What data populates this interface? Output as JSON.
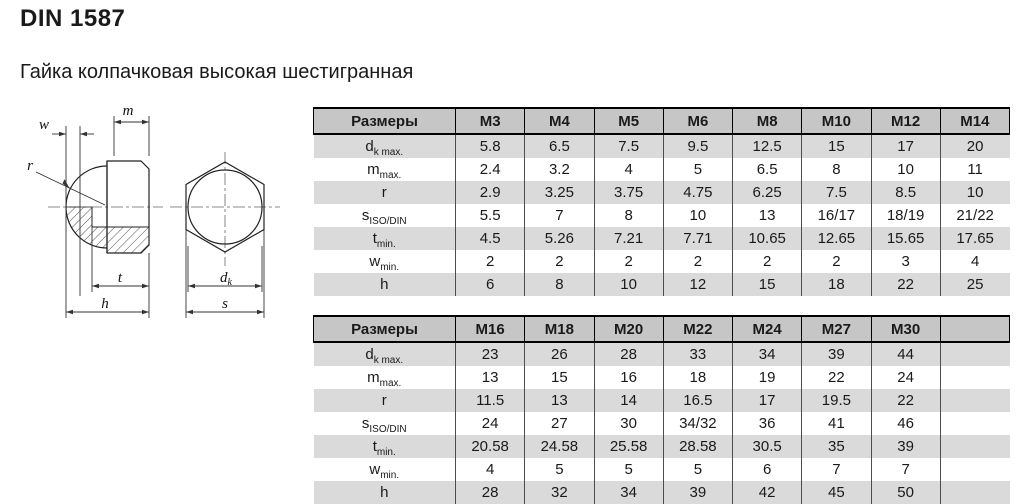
{
  "page": {
    "title": "DIN 1587",
    "subtitle": "Гайка колпачковая высокая шестигранная"
  },
  "drawing": {
    "labels": {
      "w": "w",
      "m": "m",
      "r": "r",
      "t": "t",
      "h": "h",
      "d_main": "d",
      "d_sub": "k",
      "s": "s"
    }
  },
  "tables": [
    {
      "header_label": "Размеры",
      "columns": [
        "M3",
        "M4",
        "M5",
        "M6",
        "M8",
        "M10",
        "M12",
        "M14"
      ],
      "rows": [
        {
          "param": "d",
          "sub": "k max.",
          "values": [
            "5.8",
            "6.5",
            "7.5",
            "9.5",
            "12.5",
            "15",
            "17",
            "20"
          ]
        },
        {
          "param": "m",
          "sub": "max.",
          "values": [
            "2.4",
            "3.2",
            "4",
            "5",
            "6.5",
            "8",
            "10",
            "11"
          ]
        },
        {
          "param": "r",
          "sub": "",
          "values": [
            "2.9",
            "3.25",
            "3.75",
            "4.75",
            "6.25",
            "7.5",
            "8.5",
            "10"
          ]
        },
        {
          "param": "s",
          "sub": "ISO/DIN",
          "values": [
            "5.5",
            "7",
            "8",
            "10",
            "13",
            "16/17",
            "18/19",
            "21/22"
          ]
        },
        {
          "param": "t",
          "sub": "min.",
          "values": [
            "4.5",
            "5.26",
            "7.21",
            "7.71",
            "10.65",
            "12.65",
            "15.65",
            "17.65"
          ]
        },
        {
          "param": "w",
          "sub": "min.",
          "values": [
            "2",
            "2",
            "2",
            "2",
            "2",
            "2",
            "3",
            "4"
          ]
        },
        {
          "param": "h",
          "sub": "",
          "values": [
            "6",
            "8",
            "10",
            "12",
            "15",
            "18",
            "22",
            "25"
          ]
        }
      ]
    },
    {
      "header_label": "Размеры",
      "columns": [
        "M16",
        "M18",
        "M20",
        "M22",
        "M24",
        "M27",
        "M30",
        ""
      ],
      "rows": [
        {
          "param": "d",
          "sub": "k max.",
          "values": [
            "23",
            "26",
            "28",
            "33",
            "34",
            "39",
            "44",
            ""
          ]
        },
        {
          "param": "m",
          "sub": "max.",
          "values": [
            "13",
            "15",
            "16",
            "18",
            "19",
            "22",
            "24",
            ""
          ]
        },
        {
          "param": "r",
          "sub": "",
          "values": [
            "11.5",
            "13",
            "14",
            "16.5",
            "17",
            "19.5",
            "22",
            ""
          ]
        },
        {
          "param": "s",
          "sub": "ISO/DIN",
          "values": [
            "24",
            "27",
            "30",
            "34/32",
            "36",
            "41",
            "46",
            ""
          ]
        },
        {
          "param": "t",
          "sub": "min.",
          "values": [
            "20.58",
            "24.58",
            "25.58",
            "28.58",
            "30.5",
            "35",
            "39",
            ""
          ]
        },
        {
          "param": "w",
          "sub": "min.",
          "values": [
            "4",
            "5",
            "5",
            "5",
            "6",
            "7",
            "7",
            ""
          ]
        },
        {
          "param": "h",
          "sub": "",
          "values": [
            "28",
            "32",
            "34",
            "39",
            "42",
            "45",
            "50",
            ""
          ]
        }
      ]
    }
  ],
  "colors": {
    "header_bg": "#c6c6c6",
    "stripe_bg": "#dadada",
    "grid_line": "#4d4d4d",
    "heavy_line": "#000000",
    "text": "#1a1a1a"
  }
}
